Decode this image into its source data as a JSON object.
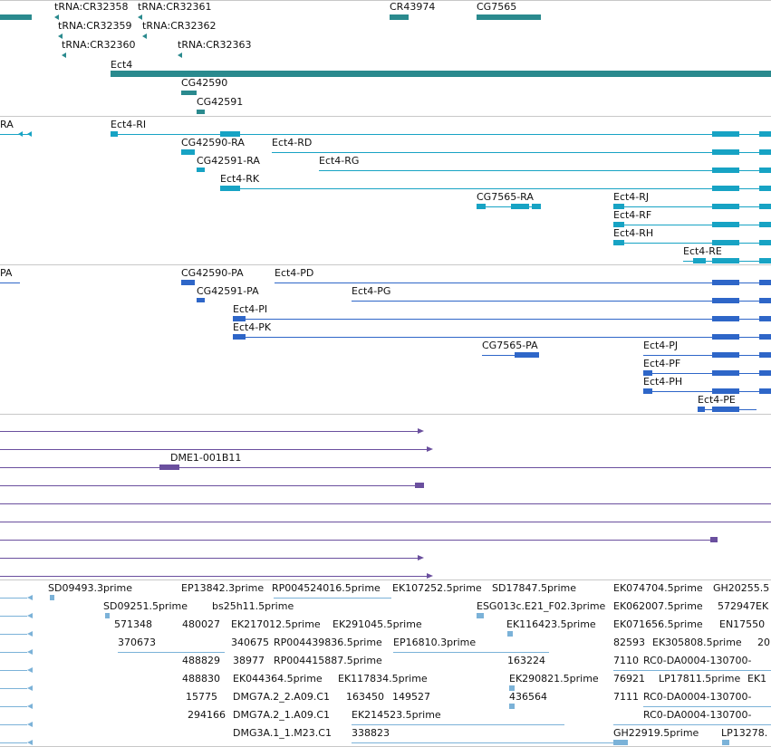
{
  "colors": {
    "gene": "#2a8a8e",
    "transcript": "#17a3c4",
    "protein": "#2e66c8",
    "clone": "#6a4f9e",
    "est": "#7bb2d8",
    "divider": "#c8c8c8"
  },
  "genes_track": {
    "labels": [
      "tRNA:CR32358",
      "tRNA:CR32361",
      "CR43974",
      "CG7565",
      "tRNA:CR32359",
      "tRNA:CR32362",
      "tRNA:CR32360",
      "tRNA:CR32363",
      "Ect4",
      "CG42590",
      "CG42591"
    ]
  },
  "transcripts_track": {
    "labels": [
      "RA",
      "Ect4-RI",
      "CG42590-RA",
      "Ect4-RD",
      "CG42591-RA",
      "Ect4-RG",
      "Ect4-RK",
      "CG7565-RA",
      "Ect4-RJ",
      "Ect4-RF",
      "Ect4-RH",
      "Ect4-RE"
    ]
  },
  "proteins_track": {
    "labels": [
      "PA",
      "CG42590-PA",
      "Ect4-PD",
      "CG42591-PA",
      "Ect4-PG",
      "Ect4-PI",
      "Ect4-PK",
      "CG7565-PA",
      "Ect4-PJ",
      "Ect4-PF",
      "Ect4-PH",
      "Ect4-PE"
    ]
  },
  "clones_track": {
    "labels": [
      "DME1-001B11"
    ]
  },
  "est_track": {
    "labels": [
      "SD09493.3prime",
      "EP13842.3prime",
      "RP004524016.5prime",
      "EK107252.5prime",
      "SD17847.5prime",
      "EK074704.5prime",
      "GH20255.5",
      "SD09251.5prime",
      "bs25h11.5prime",
      "ESG013c.E21_F02.3prime",
      "EK062007.5prime",
      "572947EK",
      "571348",
      "480027",
      "EK217012.5prime",
      "EK291045.5prime",
      "EK116423.5prime",
      "EK071656.5prime",
      "EN17550",
      "370673",
      "340675",
      "RP004439836.5prime",
      "EP16810.3prime",
      "82593",
      "EK305808.5prime",
      "20",
      "488829",
      "38977",
      "RP004415887.5prime",
      "163224",
      "7110",
      "RC0-DA0004-130700-",
      "488830",
      "EK044364.5prime",
      "EK117834.5prime",
      "EK290821.5prime",
      "76921",
      "LP17811.5prime",
      "EK1",
      "15775",
      "DMG7A.2_2.A09.C1",
      "163450",
      "149527",
      "436564",
      "7111",
      "RC0-DA0004-130700-",
      "294166",
      "DMG7A.2_1.A09.C1",
      "EK214523.5prime",
      "RC0-DA0004-130700-",
      "DMG3A.1_1.M23.C1",
      "338823",
      "GH22919.5prime",
      "LP13278."
    ]
  }
}
